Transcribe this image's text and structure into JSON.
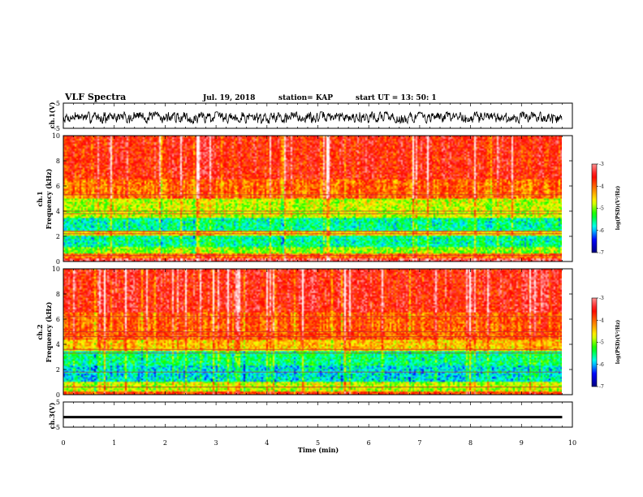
{
  "header": {
    "title": "VLF Spectra",
    "date": "Jul. 19, 2018",
    "station": "station= KAP",
    "start": "start UT = 13: 50: 1"
  },
  "colors": {
    "ramp": [
      "#000080",
      "#0000ff",
      "#00ffff",
      "#00ff00",
      "#ffff00",
      "#ff8000",
      "#ff0000",
      "#ff9999",
      "#ffffff"
    ],
    "trace": "#000000"
  },
  "chart_data": [
    {
      "type": "line",
      "name": "ch1-waveform",
      "ylabel": "ch.1(V)",
      "ylim": [
        -5,
        5
      ],
      "yticks": [
        "5",
        "-5"
      ],
      "xlim": [
        0,
        9.8
      ],
      "description_amplitude_range": [
        -2.5,
        2.0
      ]
    },
    {
      "type": "heatmap",
      "name": "ch1-spectrogram",
      "ylabel": "ch.1 Frequency (kHz)",
      "ylim": [
        0,
        10
      ],
      "yticks": [
        "0",
        "2",
        "4",
        "6",
        "8",
        "10"
      ],
      "xlim": [
        0,
        9.8
      ],
      "bands": [
        {
          "from": 0.0,
          "to": 0.3,
          "level": -3.2
        },
        {
          "from": 0.3,
          "to": 0.7,
          "level": -4.0
        },
        {
          "from": 0.7,
          "to": 1.2,
          "level": -5.0
        },
        {
          "from": 1.2,
          "to": 2.0,
          "level": -5.6
        },
        {
          "from": 2.0,
          "to": 2.5,
          "level": -4.5
        },
        {
          "from": 2.5,
          "to": 3.4,
          "level": -5.6
        },
        {
          "from": 3.4,
          "to": 5.0,
          "level": -4.8
        },
        {
          "from": 5.0,
          "to": 6.5,
          "level": -4.0
        },
        {
          "from": 6.5,
          "to": 10.0,
          "level": -3.6
        }
      ],
      "lines_khz": [
        0.5,
        2.2,
        2.4,
        3.8,
        4.0,
        5.3
      ]
    },
    {
      "type": "heatmap",
      "name": "ch2-spectrogram",
      "ylabel": "ch.2 Frequency (kHz)",
      "ylim": [
        0,
        10
      ],
      "yticks": [
        "0",
        "2",
        "4",
        "6",
        "8",
        "10"
      ],
      "xlim": [
        0,
        9.8
      ],
      "bands": [
        {
          "from": 0.0,
          "to": 0.3,
          "level": -3.8
        },
        {
          "from": 0.3,
          "to": 1.0,
          "level": -4.8
        },
        {
          "from": 1.0,
          "to": 2.3,
          "level": -5.8
        },
        {
          "from": 2.3,
          "to": 3.4,
          "level": -5.5
        },
        {
          "from": 3.4,
          "to": 4.4,
          "level": -4.4
        },
        {
          "from": 4.4,
          "to": 6.5,
          "level": -3.9
        },
        {
          "from": 6.5,
          "to": 10.0,
          "level": -3.5
        }
      ],
      "lines_khz": [
        0.6,
        1.8,
        3.3,
        3.6,
        4.6,
        5.0,
        6.2
      ]
    },
    {
      "type": "line",
      "name": "ch3-waveform",
      "ylabel": "ch.3(V)",
      "ylim": [
        -5,
        5
      ],
      "yticks": [
        "5",
        "-5"
      ],
      "xlim": [
        0,
        9.8
      ],
      "constant_value": -1.0
    }
  ],
  "colorbars": [
    {
      "label": "log(PSD)(V²/Hz)",
      "range": [
        -7,
        -3
      ],
      "ticks": [
        "-3",
        "-4",
        "-5",
        "-6",
        "-7"
      ]
    },
    {
      "label": "log(PSD)(V²/Hz)",
      "range": [
        -7,
        -3
      ],
      "ticks": [
        "-3",
        "-4",
        "-5",
        "-6",
        "-7"
      ]
    }
  ],
  "xaxis": {
    "label": "Time (min)",
    "range": [
      0,
      10
    ],
    "ticks": [
      "0",
      "1",
      "2",
      "3",
      "4",
      "5",
      "6",
      "7",
      "8",
      "9",
      "10"
    ]
  }
}
